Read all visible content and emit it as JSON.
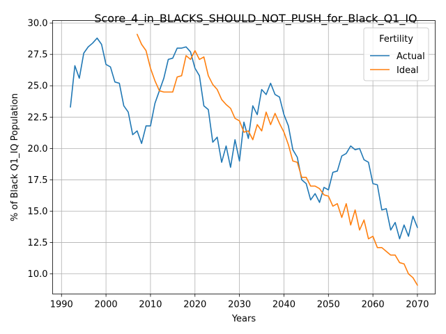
{
  "chart_data": {
    "type": "line",
    "title": "Score_4_in_BLACKS_SHOULD_NOT_PUSH_for_Black_Q1_IQ",
    "xlabel": "Years",
    "ylabel": "% of Black Q1_IQ Population",
    "xlim": [
      1988,
      2074
    ],
    "ylim": [
      8.4,
      30.2
    ],
    "xticks": [
      1990,
      2000,
      2010,
      2020,
      2030,
      2040,
      2050,
      2060,
      2070
    ],
    "yticks": [
      10.0,
      12.5,
      15.0,
      17.5,
      20.0,
      22.5,
      25.0,
      27.5,
      30.0
    ],
    "grid": true,
    "legend": {
      "title": "Fertility",
      "position": "top-right"
    },
    "series": [
      {
        "name": "Actual",
        "color": "#1f77b4",
        "x": [
          1992,
          1993,
          1994,
          1995,
          1996,
          1997,
          1998,
          1999,
          2000,
          2001,
          2002,
          2003,
          2004,
          2005,
          2006,
          2007,
          2008,
          2009,
          2010,
          2011,
          2012,
          2013,
          2014,
          2015,
          2016,
          2017,
          2018,
          2019,
          2020,
          2021,
          2022,
          2023,
          2024,
          2025,
          2026,
          2027,
          2028,
          2029,
          2030,
          2031,
          2032,
          2033,
          2034,
          2035,
          2036,
          2037,
          2038,
          2039,
          2040,
          2041,
          2042,
          2043,
          2044,
          2045,
          2046,
          2047,
          2048,
          2049,
          2050,
          2051,
          2052,
          2053,
          2054,
          2055,
          2056,
          2057,
          2058,
          2059,
          2060,
          2061,
          2062,
          2063,
          2064,
          2065,
          2066,
          2067,
          2068,
          2069,
          2070
        ],
        "values": [
          23.3,
          26.6,
          25.6,
          27.6,
          28.1,
          28.4,
          28.8,
          28.3,
          26.7,
          26.5,
          25.3,
          25.2,
          23.4,
          22.9,
          21.1,
          21.4,
          20.4,
          21.8,
          21.8,
          23.6,
          24.6,
          25.6,
          27.1,
          27.2,
          28.0,
          28.0,
          28.1,
          27.7,
          26.4,
          25.8,
          23.4,
          23.1,
          20.5,
          20.9,
          18.9,
          20.2,
          18.5,
          20.7,
          19.0,
          22.1,
          20.8,
          23.4,
          22.7,
          24.7,
          24.3,
          25.2,
          24.3,
          24.1,
          22.7,
          21.8,
          19.9,
          19.3,
          17.5,
          17.2,
          15.9,
          16.4,
          15.7,
          16.9,
          16.7,
          18.1,
          18.2,
          19.4,
          19.6,
          20.2,
          19.9,
          20.0,
          19.1,
          18.9,
          17.2,
          17.1,
          15.1,
          15.2,
          13.5,
          14.1,
          12.8,
          13.9,
          13.0,
          14.6,
          13.7
        ]
      },
      {
        "name": "Ideal",
        "color": "#ff7f0e",
        "x": [
          2007,
          2008,
          2009,
          2010,
          2011,
          2012,
          2013,
          2014,
          2015,
          2016,
          2017,
          2018,
          2019,
          2020,
          2021,
          2022,
          2023,
          2024,
          2025,
          2026,
          2027,
          2028,
          2029,
          2030,
          2031,
          2032,
          2033,
          2034,
          2035,
          2036,
          2037,
          2038,
          2039,
          2040,
          2041,
          2042,
          2043,
          2044,
          2045,
          2046,
          2047,
          2048,
          2049,
          2050,
          2051,
          2052,
          2053,
          2054,
          2055,
          2056,
          2057,
          2058,
          2059,
          2060,
          2061,
          2062,
          2063,
          2064,
          2065,
          2066,
          2067,
          2068,
          2069,
          2070
        ],
        "values": [
          29.1,
          28.3,
          27.8,
          26.4,
          25.4,
          24.6,
          24.5,
          24.5,
          24.5,
          25.7,
          25.8,
          27.4,
          27.1,
          27.8,
          27.1,
          27.3,
          25.8,
          25.1,
          24.7,
          23.9,
          23.5,
          23.2,
          22.4,
          22.2,
          21.3,
          21.4,
          20.7,
          21.9,
          21.4,
          22.9,
          21.9,
          22.8,
          22.0,
          21.3,
          20.3,
          19.0,
          18.9,
          17.7,
          17.7,
          17.0,
          17.0,
          16.8,
          16.3,
          16.2,
          15.4,
          15.6,
          14.5,
          15.6,
          13.9,
          15.1,
          13.5,
          14.3,
          12.8,
          13.0,
          12.1,
          12.1,
          11.8,
          11.5,
          11.5,
          10.9,
          10.8,
          10.0,
          9.7,
          9.1
        ]
      }
    ]
  }
}
